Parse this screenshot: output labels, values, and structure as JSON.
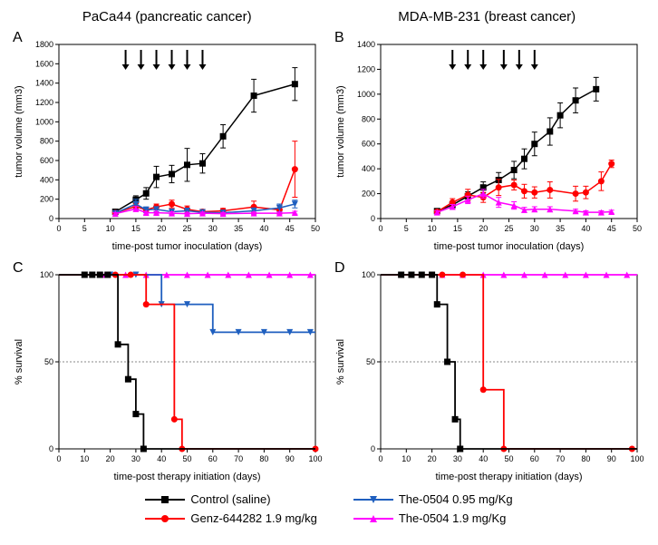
{
  "titles": {
    "left": "PaCa44 (pancreatic cancer)",
    "right": "MDA-MB-231 (breast cancer)"
  },
  "colors": {
    "control": "#000000",
    "genz": "#ff0000",
    "the095": "#1f5fbf",
    "the19": "#ff00ff",
    "grid": "#c0c0c0",
    "axis": "#000000",
    "bg": "#ffffff"
  },
  "legend": {
    "control": "Control (saline)",
    "genz": "Genz-644282 1.9 mg/kg",
    "the095": "The-0504 0.95 mg/Kg",
    "the19": "The-0504 1.9 mg/Kg"
  },
  "axis_labels": {
    "tumor_y": "tumor volume (mm3)",
    "survival_y": "% survival",
    "tumor_x": "time-post tumor inoculation (days)",
    "survival_x": "time-post therapy initiation (days)"
  },
  "panelA": {
    "label": "A",
    "xlim": [
      0,
      50
    ],
    "xtick_step": 5,
    "ylim": [
      0,
      1800
    ],
    "ytick_step": 200,
    "arrows_x": [
      13,
      16,
      19,
      22,
      25,
      28
    ],
    "series": {
      "control": {
        "x": [
          11,
          15,
          17,
          19,
          22,
          25,
          28,
          32,
          38,
          46
        ],
        "y": [
          70,
          195,
          260,
          430,
          460,
          555,
          570,
          850,
          1270,
          1390
        ],
        "err": [
          20,
          40,
          60,
          110,
          90,
          170,
          100,
          120,
          170,
          170
        ]
      },
      "genz": {
        "x": [
          11,
          15,
          17,
          19,
          22,
          25,
          28,
          32,
          38,
          43,
          46
        ],
        "y": [
          60,
          125,
          90,
          120,
          150,
          95,
          70,
          80,
          120,
          90,
          510
        ],
        "err": [
          15,
          30,
          25,
          30,
          40,
          35,
          25,
          25,
          60,
          40,
          290
        ]
      },
      "the095": {
        "x": [
          11,
          15,
          17,
          19,
          22,
          25,
          28,
          32,
          38,
          43,
          46
        ],
        "y": [
          55,
          150,
          90,
          95,
          70,
          80,
          65,
          60,
          80,
          110,
          150
        ],
        "err": [
          15,
          50,
          30,
          25,
          25,
          20,
          20,
          20,
          30,
          40,
          40
        ]
      },
      "the19": {
        "x": [
          11,
          15,
          17,
          19,
          22,
          25,
          28,
          32,
          38,
          43,
          46
        ],
        "y": [
          50,
          100,
          60,
          60,
          55,
          50,
          55,
          50,
          55,
          55,
          60
        ],
        "err": [
          12,
          25,
          15,
          15,
          15,
          12,
          12,
          12,
          12,
          12,
          15
        ]
      }
    }
  },
  "panelB": {
    "label": "B",
    "xlim": [
      0,
      50
    ],
    "xtick_step": 5,
    "ylim": [
      0,
      1400
    ],
    "ytick_step": 200,
    "arrows_x": [
      14,
      17,
      20,
      24,
      27,
      30
    ],
    "series": {
      "control": {
        "x": [
          11,
          14,
          17,
          20,
          23,
          26,
          28,
          30,
          33,
          35,
          38,
          42
        ],
        "y": [
          60,
          110,
          180,
          250,
          310,
          390,
          480,
          600,
          700,
          830,
          950,
          1040
        ],
        "err": [
          15,
          25,
          35,
          45,
          60,
          70,
          80,
          95,
          110,
          100,
          100,
          95
        ]
      },
      "genz": {
        "x": [
          11,
          14,
          17,
          20,
          23,
          26,
          28,
          30,
          33,
          38,
          40,
          43,
          45
        ],
        "y": [
          55,
          130,
          190,
          170,
          250,
          270,
          220,
          210,
          230,
          200,
          210,
          300,
          440
        ],
        "err": [
          15,
          30,
          45,
          40,
          65,
          40,
          55,
          45,
          65,
          60,
          50,
          75,
          30
        ]
      },
      "the19": {
        "x": [
          11,
          14,
          17,
          20,
          23,
          26,
          28,
          30,
          33,
          38,
          40,
          43,
          45
        ],
        "y": [
          50,
          95,
          150,
          200,
          130,
          105,
          70,
          75,
          75,
          60,
          50,
          50,
          55
        ],
        "err": [
          12,
          18,
          30,
          35,
          40,
          30,
          20,
          20,
          20,
          15,
          12,
          12,
          12
        ]
      }
    }
  },
  "panelC": {
    "label": "C",
    "xlim": [
      0,
      100
    ],
    "xtick_step": 10,
    "ylim": [
      0,
      100
    ],
    "ytick_step": 50,
    "ref_line_y": 50,
    "series": {
      "control": {
        "steps": [
          [
            0,
            100
          ],
          [
            23,
            100
          ],
          [
            23,
            60
          ],
          [
            27,
            60
          ],
          [
            27,
            40
          ],
          [
            30,
            40
          ],
          [
            30,
            20
          ],
          [
            33,
            20
          ],
          [
            33,
            0
          ],
          [
            100,
            0
          ]
        ],
        "pts": [
          [
            10,
            100
          ],
          [
            13,
            100
          ],
          [
            16,
            100
          ],
          [
            19,
            100
          ],
          [
            23,
            60
          ],
          [
            27,
            40
          ],
          [
            30,
            20
          ],
          [
            33,
            0
          ]
        ]
      },
      "genz": {
        "steps": [
          [
            0,
            100
          ],
          [
            34,
            100
          ],
          [
            34,
            83
          ],
          [
            45,
            83
          ],
          [
            45,
            17
          ],
          [
            48,
            17
          ],
          [
            48,
            0
          ],
          [
            100,
            0
          ]
        ],
        "pts": [
          [
            10,
            100
          ],
          [
            16,
            100
          ],
          [
            22,
            100
          ],
          [
            28,
            100
          ],
          [
            34,
            83
          ],
          [
            45,
            17
          ],
          [
            48,
            0
          ],
          [
            100,
            0
          ]
        ]
      },
      "the095": {
        "steps": [
          [
            0,
            100
          ],
          [
            40,
            100
          ],
          [
            40,
            83
          ],
          [
            60,
            83
          ],
          [
            60,
            67
          ],
          [
            100,
            67
          ]
        ],
        "pts": [
          [
            10,
            100
          ],
          [
            20,
            100
          ],
          [
            30,
            100
          ],
          [
            40,
            83
          ],
          [
            50,
            83
          ],
          [
            60,
            67
          ],
          [
            70,
            67
          ],
          [
            80,
            67
          ],
          [
            90,
            67
          ],
          [
            98,
            67
          ]
        ]
      },
      "the19": {
        "steps": [
          [
            0,
            100
          ],
          [
            100,
            100
          ]
        ],
        "pts": [
          [
            10,
            100
          ],
          [
            18,
            100
          ],
          [
            26,
            100
          ],
          [
            34,
            100
          ],
          [
            42,
            100
          ],
          [
            50,
            100
          ],
          [
            58,
            100
          ],
          [
            66,
            100
          ],
          [
            74,
            100
          ],
          [
            82,
            100
          ],
          [
            90,
            100
          ],
          [
            98,
            100
          ]
        ]
      }
    }
  },
  "panelD": {
    "label": "D",
    "xlim": [
      0,
      100
    ],
    "xtick_step": 10,
    "ylim": [
      0,
      100
    ],
    "ytick_step": 50,
    "ref_line_y": 50,
    "series": {
      "control": {
        "steps": [
          [
            0,
            100
          ],
          [
            22,
            100
          ],
          [
            22,
            83
          ],
          [
            26,
            83
          ],
          [
            26,
            50
          ],
          [
            29,
            50
          ],
          [
            29,
            17
          ],
          [
            31,
            17
          ],
          [
            31,
            0
          ],
          [
            100,
            0
          ]
        ],
        "pts": [
          [
            8,
            100
          ],
          [
            12,
            100
          ],
          [
            16,
            100
          ],
          [
            20,
            100
          ],
          [
            22,
            83
          ],
          [
            26,
            50
          ],
          [
            29,
            17
          ],
          [
            31,
            0
          ]
        ]
      },
      "genz": {
        "steps": [
          [
            0,
            100
          ],
          [
            40,
            100
          ],
          [
            40,
            34
          ],
          [
            48,
            34
          ],
          [
            48,
            0
          ],
          [
            100,
            0
          ]
        ],
        "pts": [
          [
            8,
            100
          ],
          [
            16,
            100
          ],
          [
            24,
            100
          ],
          [
            32,
            100
          ],
          [
            40,
            34
          ],
          [
            48,
            0
          ],
          [
            98,
            0
          ]
        ]
      },
      "the19": {
        "steps": [
          [
            0,
            100
          ],
          [
            100,
            100
          ]
        ],
        "pts": [
          [
            8,
            100
          ],
          [
            16,
            100
          ],
          [
            24,
            100
          ],
          [
            32,
            100
          ],
          [
            40,
            100
          ],
          [
            48,
            100
          ],
          [
            56,
            100
          ],
          [
            64,
            100
          ],
          [
            72,
            100
          ],
          [
            80,
            100
          ],
          [
            88,
            100
          ],
          [
            96,
            100
          ]
        ]
      }
    }
  },
  "markers": {
    "control": "square",
    "genz": "circle",
    "the095": "triangle-down",
    "the19": "triangle-up"
  }
}
